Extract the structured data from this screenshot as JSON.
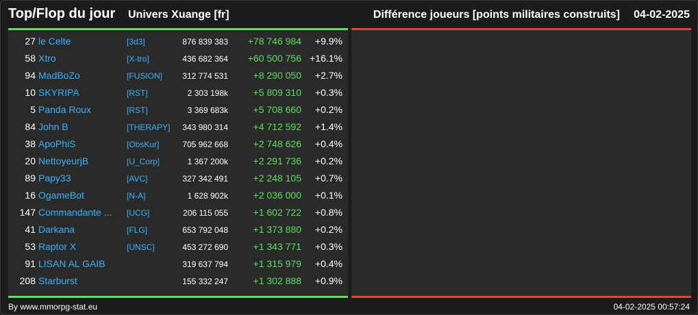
{
  "header": {
    "title": "Top/Flop du jour",
    "universe": "Univers Xuange [fr]",
    "metric": "Différence joueurs [points militaires construits]",
    "date": "04-02-2025"
  },
  "colors": {
    "top_accent": "#5ee05e",
    "flop_accent": "#e0463c",
    "link": "#3ab4ff"
  },
  "top_rows": [
    {
      "rank": "27",
      "name": "le Celte",
      "tag": "[3d3]",
      "points": "876 839 383",
      "diff": "+78 746 984",
      "pct": "+9.9%"
    },
    {
      "rank": "58",
      "name": "Xtro",
      "tag": "[X-tro]",
      "points": "436 682 364",
      "diff": "+60 500 756",
      "pct": "+16.1%"
    },
    {
      "rank": "94",
      "name": "MadBoZo",
      "tag": "[FUSION]",
      "points": "312 774 531",
      "diff": "+8 290 050",
      "pct": "+2.7%"
    },
    {
      "rank": "10",
      "name": "SKYRIPA",
      "tag": "[RST]",
      "points": "2 303 198k",
      "diff": "+5 809 310",
      "pct": "+0.3%"
    },
    {
      "rank": "5",
      "name": "Panda Roux",
      "tag": "[RST]",
      "points": "3 369 683k",
      "diff": "+5 708 660",
      "pct": "+0.2%"
    },
    {
      "rank": "84",
      "name": "John B",
      "tag": "[THERAPY]",
      "points": "343 980 314",
      "diff": "+4 712 592",
      "pct": "+1.4%"
    },
    {
      "rank": "38",
      "name": "ApoPhiS",
      "tag": "[ObsKur]",
      "points": "705 962 668",
      "diff": "+2 748 626",
      "pct": "+0.4%"
    },
    {
      "rank": "20",
      "name": "NettoyeurjB",
      "tag": "[U_Corp]",
      "points": "1 367 200k",
      "diff": "+2 291 736",
      "pct": "+0.2%"
    },
    {
      "rank": "89",
      "name": "Papy33",
      "tag": "[AVC]",
      "points": "327 342 491",
      "diff": "+2 248 105",
      "pct": "+0.7%"
    },
    {
      "rank": "16",
      "name": "OgameBot",
      "tag": "[N-A]",
      "points": "1 628 902k",
      "diff": "+2 036 000",
      "pct": "+0.1%"
    },
    {
      "rank": "147",
      "name": "Commandante ...",
      "tag": "[UCG]",
      "points": "206 115 055",
      "diff": "+1 602 722",
      "pct": "+0.8%"
    },
    {
      "rank": "41",
      "name": "Darkana",
      "tag": "[FLG]",
      "points": "653 792 048",
      "diff": "+1 373 880",
      "pct": "+0.2%"
    },
    {
      "rank": "53",
      "name": "Raptor X",
      "tag": "[UNSC]",
      "points": "453 272 690",
      "diff": "+1 343 771",
      "pct": "+0.3%"
    },
    {
      "rank": "91",
      "name": "LISAN AL GAIB",
      "tag": "",
      "points": "319 637 794",
      "diff": "+1 315 979",
      "pct": "+0.4%"
    },
    {
      "rank": "208",
      "name": "Starburst",
      "tag": "",
      "points": "155 332 247",
      "diff": "+1 302 888",
      "pct": "+0.9%"
    }
  ],
  "footer": {
    "credit": "By www.mmorpg-stat.eu",
    "timestamp": "04-02-2025 00:57:24"
  }
}
